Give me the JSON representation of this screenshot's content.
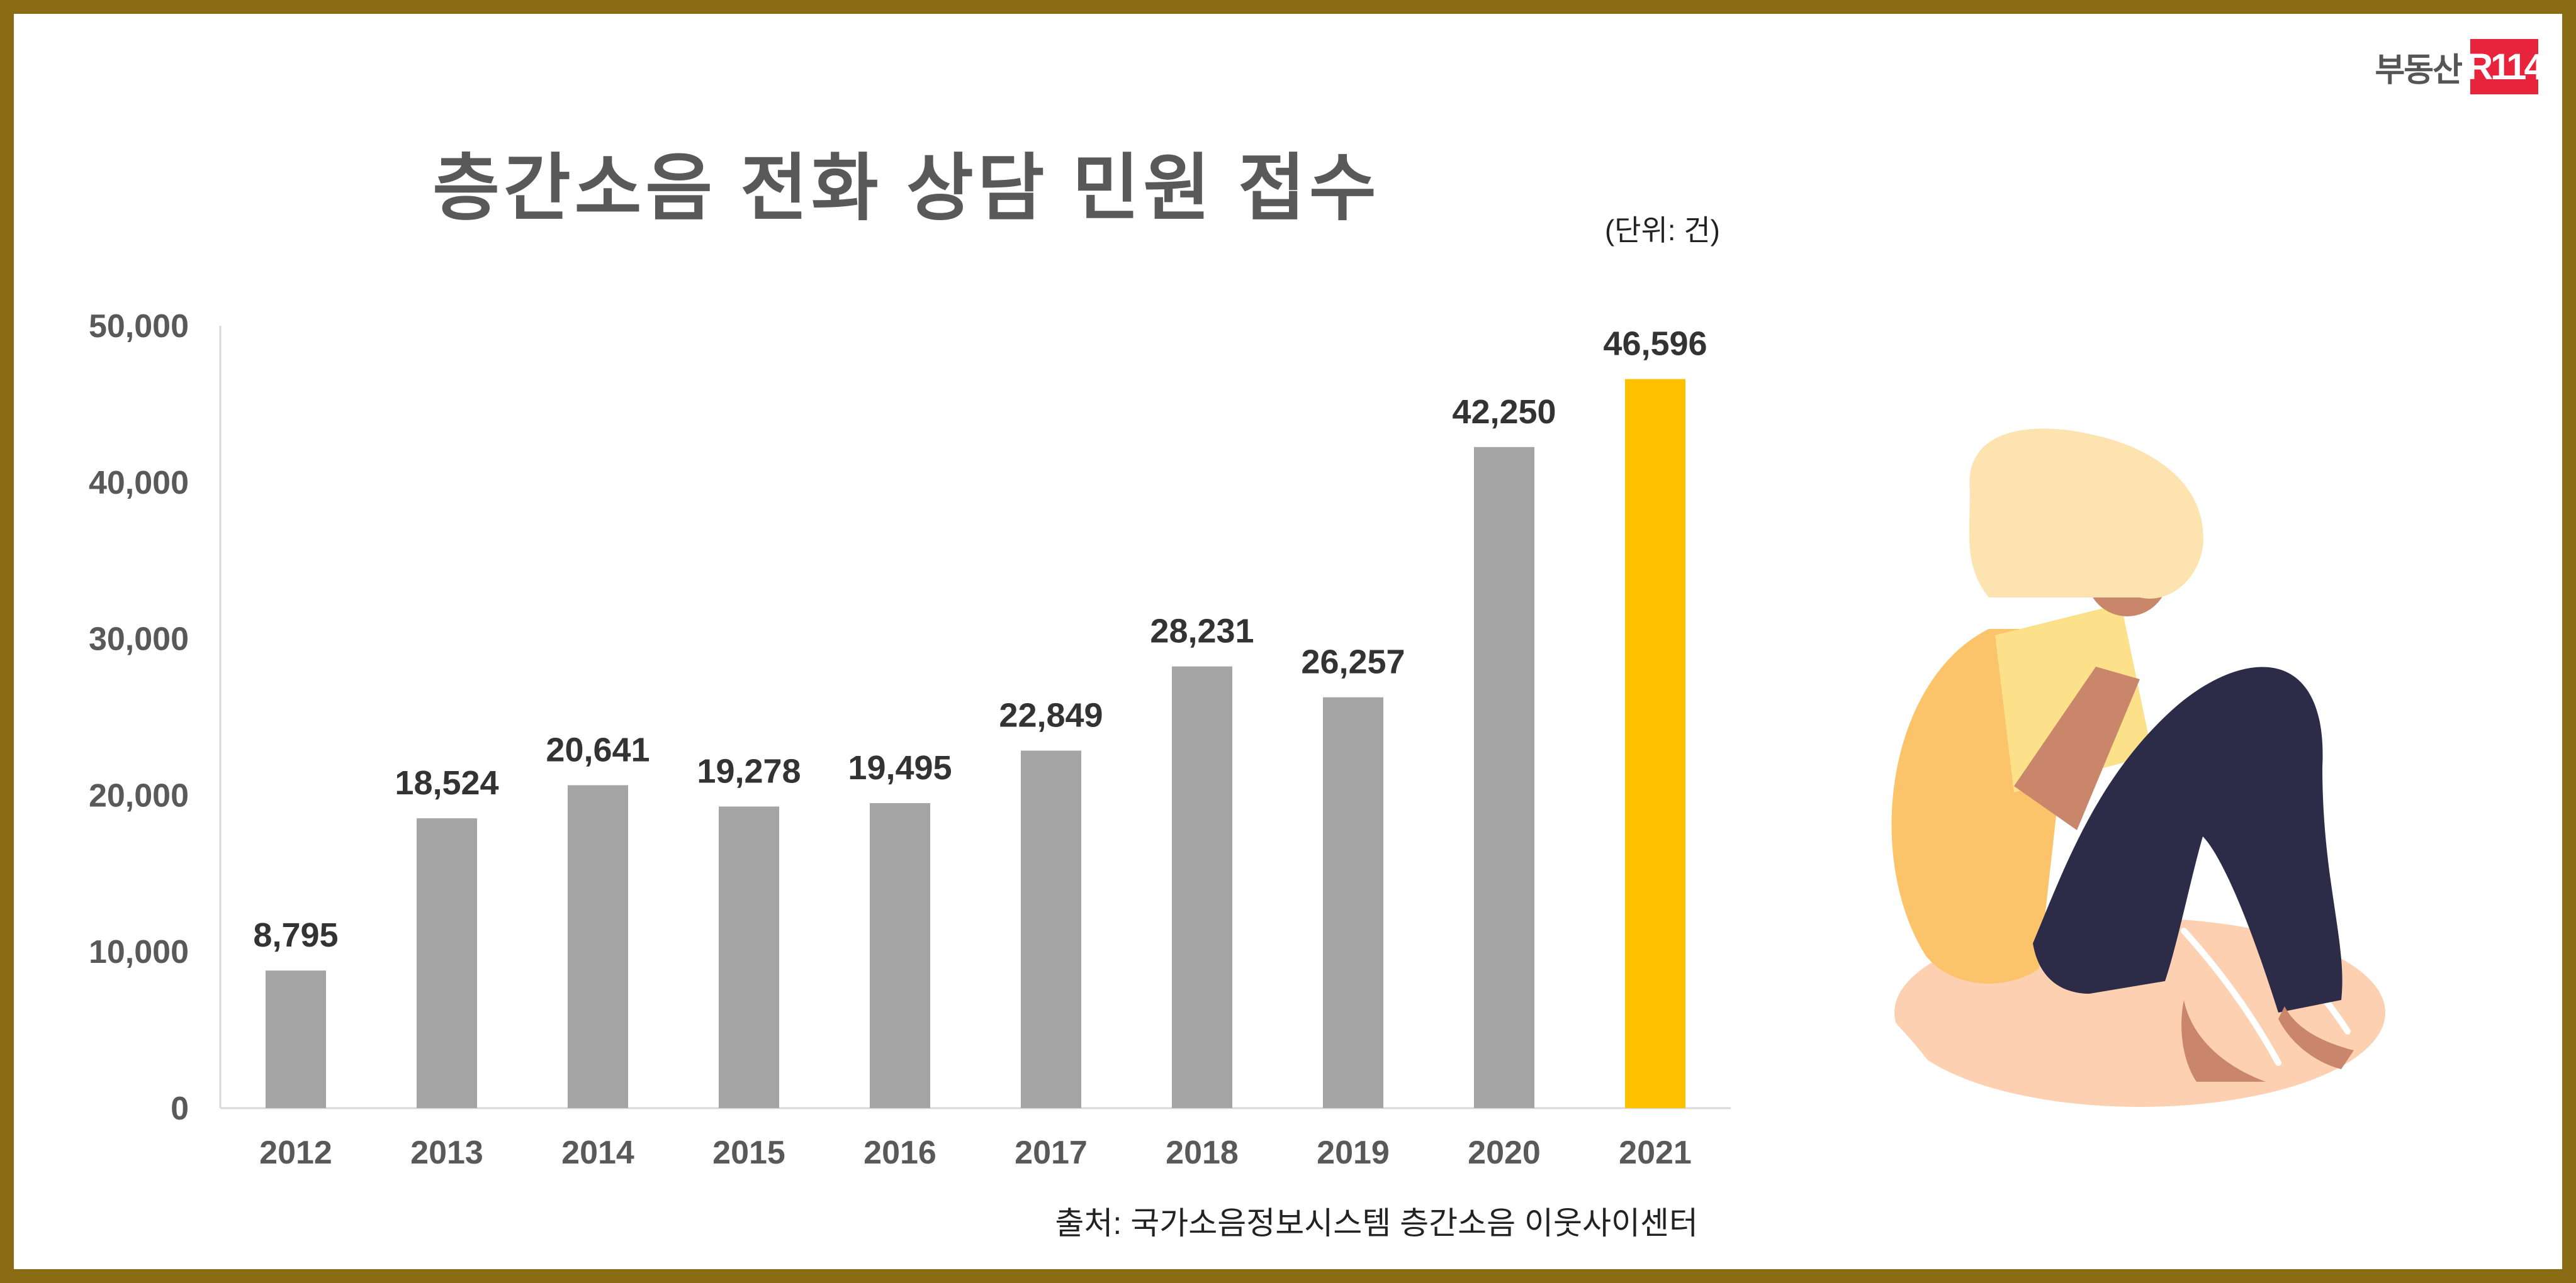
{
  "title": "층간소음 전화 상담 민원 접수",
  "unit": "(단위: 건)",
  "source": "출처: 국가소음정보시스템 층간소음 이웃사이센터",
  "logo": {
    "text": "부동산",
    "badge": "R114"
  },
  "colors": {
    "bar": "#a5a5a5",
    "highlight": "#ffc000",
    "frame": "#8a6c14"
  },
  "chart_data": {
    "type": "bar",
    "title": "층간소음 전화 상담 민원 접수",
    "xlabel": "",
    "ylabel": "",
    "categories": [
      "2012",
      "2013",
      "2014",
      "2015",
      "2016",
      "2017",
      "2018",
      "2019",
      "2020",
      "2021"
    ],
    "values": [
      8795,
      18524,
      20641,
      19278,
      19495,
      22849,
      28231,
      26257,
      42250,
      46596
    ],
    "labels": [
      "8,795",
      "18,524",
      "20,641",
      "19,278",
      "19,495",
      "22,849",
      "28,231",
      "26,257",
      "42,250",
      "46,596"
    ],
    "highlight_index": 9,
    "ylim": [
      0,
      50000
    ],
    "yticks": [
      0,
      10000,
      20000,
      30000,
      40000,
      50000
    ],
    "ytick_labels": [
      "0",
      "10,000",
      "20,000",
      "30,000",
      "40,000",
      "50,000"
    ],
    "grid": false,
    "legend": "none"
  }
}
